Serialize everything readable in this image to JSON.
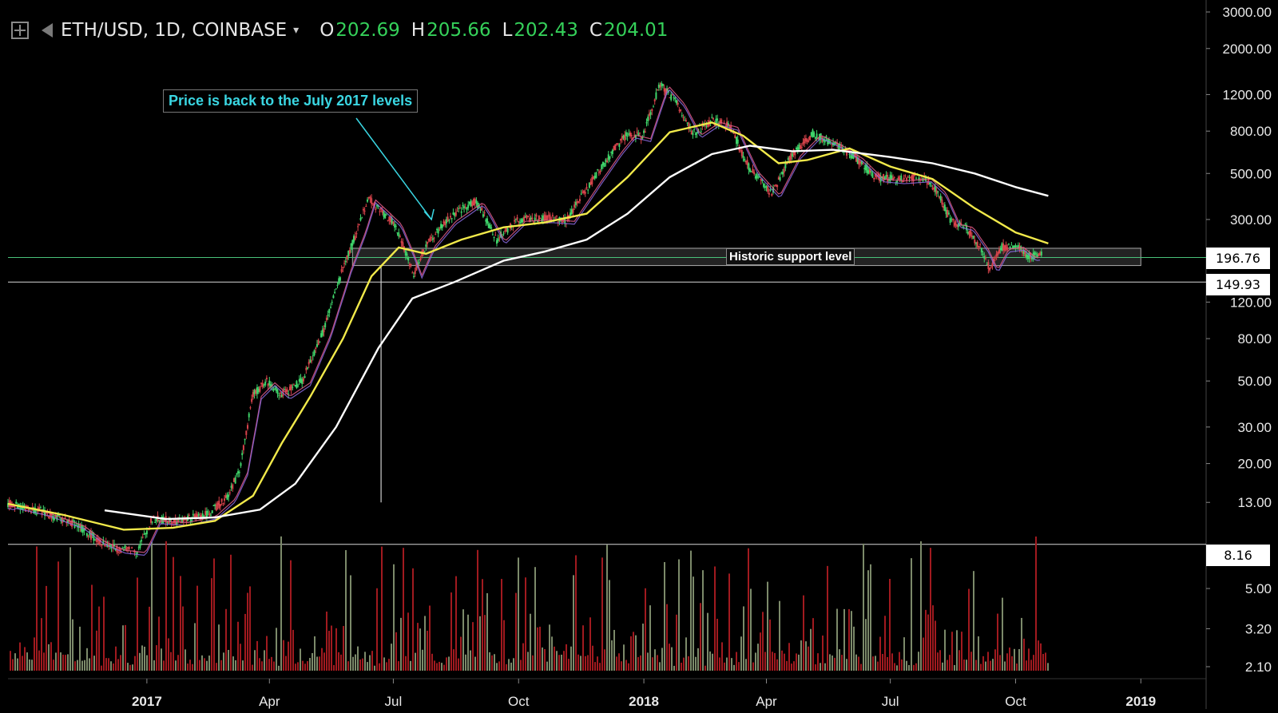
{
  "header": {
    "symbol_text": "ETH/USD, 1D, COINBASE",
    "open_label": "O",
    "open_value": "202.69",
    "high_label": "H",
    "high_value": "205.66",
    "low_label": "L",
    "low_value": "202.43",
    "close_label": "C",
    "close_value": "204.01",
    "caret": "▾"
  },
  "colors": {
    "background": "#000000",
    "ohlc_value": "#35d15a",
    "annotation_text": "#3ad6e2",
    "ma_yellow": "#f1e94a",
    "ma_white": "#ffffff",
    "candle_up": "#3fd46a",
    "candle_down": "#d8434b",
    "volume_up": "#7c8a6a",
    "volume_down": "#a11a1f"
  },
  "chart_data": {
    "type": "line",
    "title": "ETH/USD, 1D, COINBASE",
    "y_scale": "log",
    "ylim": [
      2.1,
      3000
    ],
    "y_ticks": [
      "3000.00",
      "2000.00",
      "1200.00",
      "800.00",
      "500.00",
      "300.00",
      "120.00",
      "80.00",
      "50.00",
      "30.00",
      "20.00",
      "13.00",
      "5.00",
      "3.20",
      "2.10"
    ],
    "x_ticks": [
      {
        "label": "2017",
        "bold": true,
        "date": "2017-01-01"
      },
      {
        "label": "Apr",
        "bold": false,
        "date": "2017-04-01"
      },
      {
        "label": "Jul",
        "bold": false,
        "date": "2017-07-01"
      },
      {
        "label": "Oct",
        "bold": false,
        "date": "2017-10-01"
      },
      {
        "label": "2018",
        "bold": true,
        "date": "2018-01-01"
      },
      {
        "label": "Apr",
        "bold": false,
        "date": "2018-04-01"
      },
      {
        "label": "Jul",
        "bold": false,
        "date": "2018-07-01"
      },
      {
        "label": "Oct",
        "bold": false,
        "date": "2018-10-01"
      },
      {
        "label": "2019",
        "bold": true,
        "date": "2019-01-01"
      }
    ],
    "xlim": [
      "2016-09-21",
      "2019-02-15"
    ],
    "price_badges": [
      "196.76",
      "149.93",
      "8.16"
    ],
    "levels": [
      196.76,
      149.93,
      8.16
    ],
    "support_band": {
      "low": 180,
      "high": 218,
      "start": "2017-06-01",
      "end": "2019-01-01",
      "label": "Historic support level"
    },
    "annotation": {
      "text": "Price is back to the July 2017 levels",
      "arrow_to": {
        "date": "2017-07-29",
        "price": 300
      }
    },
    "wick_spike": {
      "date": "2017-06-22",
      "low": 13,
      "high": 180
    },
    "series": [
      {
        "name": "",
        "role": "price",
        "points": [
          [
            "2016-09-21",
            12.8
          ],
          [
            "2016-10-15",
            11.8
          ],
          [
            "2016-11-10",
            10.2
          ],
          [
            "2016-11-25",
            8.6
          ],
          [
            "2016-12-10",
            7.8
          ],
          [
            "2016-12-25",
            7.6
          ],
          [
            "2017-01-05",
            10.8
          ],
          [
            "2017-01-25",
            10.6
          ],
          [
            "2017-02-15",
            11.4
          ],
          [
            "2017-03-01",
            13.8
          ],
          [
            "2017-03-10",
            18.5
          ],
          [
            "2017-03-20",
            43
          ],
          [
            "2017-03-30",
            50
          ],
          [
            "2017-04-10",
            43
          ],
          [
            "2017-04-25",
            50
          ],
          [
            "2017-05-10",
            85
          ],
          [
            "2017-05-25",
            175
          ],
          [
            "2017-06-05",
            270
          ],
          [
            "2017-06-12",
            380
          ],
          [
            "2017-06-20",
            340
          ],
          [
            "2017-07-01",
            290
          ],
          [
            "2017-07-10",
            210
          ],
          [
            "2017-07-16",
            165
          ],
          [
            "2017-07-25",
            225
          ],
          [
            "2017-08-10",
            300
          ],
          [
            "2017-08-30",
            370
          ],
          [
            "2017-09-05",
            320
          ],
          [
            "2017-09-15",
            240
          ],
          [
            "2017-09-30",
            300
          ],
          [
            "2017-10-20",
            305
          ],
          [
            "2017-11-05",
            300
          ],
          [
            "2017-11-25",
            470
          ],
          [
            "2017-12-10",
            650
          ],
          [
            "2017-12-20",
            780
          ],
          [
            "2017-12-31",
            750
          ],
          [
            "2018-01-13",
            1350
          ],
          [
            "2018-01-25",
            1100
          ],
          [
            "2018-02-06",
            780
          ],
          [
            "2018-02-20",
            900
          ],
          [
            "2018-03-05",
            850
          ],
          [
            "2018-03-20",
            520
          ],
          [
            "2018-04-05",
            400
          ],
          [
            "2018-04-20",
            620
          ],
          [
            "2018-05-05",
            780
          ],
          [
            "2018-05-20",
            700
          ],
          [
            "2018-06-05",
            600
          ],
          [
            "2018-06-20",
            480
          ],
          [
            "2018-07-05",
            470
          ],
          [
            "2018-07-25",
            480
          ],
          [
            "2018-08-05",
            410
          ],
          [
            "2018-08-15",
            290
          ],
          [
            "2018-08-25",
            280
          ],
          [
            "2018-09-05",
            220
          ],
          [
            "2018-09-12",
            175
          ],
          [
            "2018-09-20",
            220
          ],
          [
            "2018-10-01",
            225
          ],
          [
            "2018-10-10",
            200
          ],
          [
            "2018-10-20",
            204
          ]
        ]
      },
      {
        "name": "",
        "role": "ma-yellow",
        "points": [
          [
            "2016-09-21",
            12.8
          ],
          [
            "2016-11-01",
            11.3
          ],
          [
            "2016-12-15",
            9.6
          ],
          [
            "2017-01-20",
            9.8
          ],
          [
            "2017-02-20",
            10.6
          ],
          [
            "2017-03-20",
            14
          ],
          [
            "2017-04-10",
            25
          ],
          [
            "2017-05-01",
            42
          ],
          [
            "2017-05-25",
            80
          ],
          [
            "2017-06-15",
            160
          ],
          [
            "2017-07-05",
            220
          ],
          [
            "2017-07-25",
            205
          ],
          [
            "2017-08-20",
            240
          ],
          [
            "2017-09-20",
            275
          ],
          [
            "2017-10-20",
            290
          ],
          [
            "2017-11-20",
            320
          ],
          [
            "2017-12-20",
            480
          ],
          [
            "2018-01-20",
            790
          ],
          [
            "2018-02-20",
            880
          ],
          [
            "2018-03-15",
            760
          ],
          [
            "2018-04-10",
            560
          ],
          [
            "2018-05-01",
            580
          ],
          [
            "2018-06-01",
            660
          ],
          [
            "2018-07-01",
            540
          ],
          [
            "2018-08-01",
            470
          ],
          [
            "2018-09-01",
            340
          ],
          [
            "2018-10-01",
            260
          ],
          [
            "2018-10-25",
            230
          ]
        ]
      },
      {
        "name": "",
        "role": "ma-white",
        "points": [
          [
            "2016-12-01",
            11.9
          ],
          [
            "2017-01-15",
            10.8
          ],
          [
            "2017-02-20",
            11.0
          ],
          [
            "2017-03-25",
            12.0
          ],
          [
            "2017-04-20",
            16
          ],
          [
            "2017-05-20",
            30
          ],
          [
            "2017-06-20",
            72
          ],
          [
            "2017-07-15",
            125
          ],
          [
            "2017-08-15",
            150
          ],
          [
            "2017-09-20",
            190
          ],
          [
            "2017-10-20",
            210
          ],
          [
            "2017-11-20",
            240
          ],
          [
            "2017-12-20",
            320
          ],
          [
            "2018-01-20",
            480
          ],
          [
            "2018-02-20",
            620
          ],
          [
            "2018-03-20",
            680
          ],
          [
            "2018-04-20",
            640
          ],
          [
            "2018-05-20",
            650
          ],
          [
            "2018-07-01",
            600
          ],
          [
            "2018-08-01",
            560
          ],
          [
            "2018-09-01",
            500
          ],
          [
            "2018-10-01",
            430
          ],
          [
            "2018-10-25",
            390
          ]
        ]
      }
    ]
  }
}
